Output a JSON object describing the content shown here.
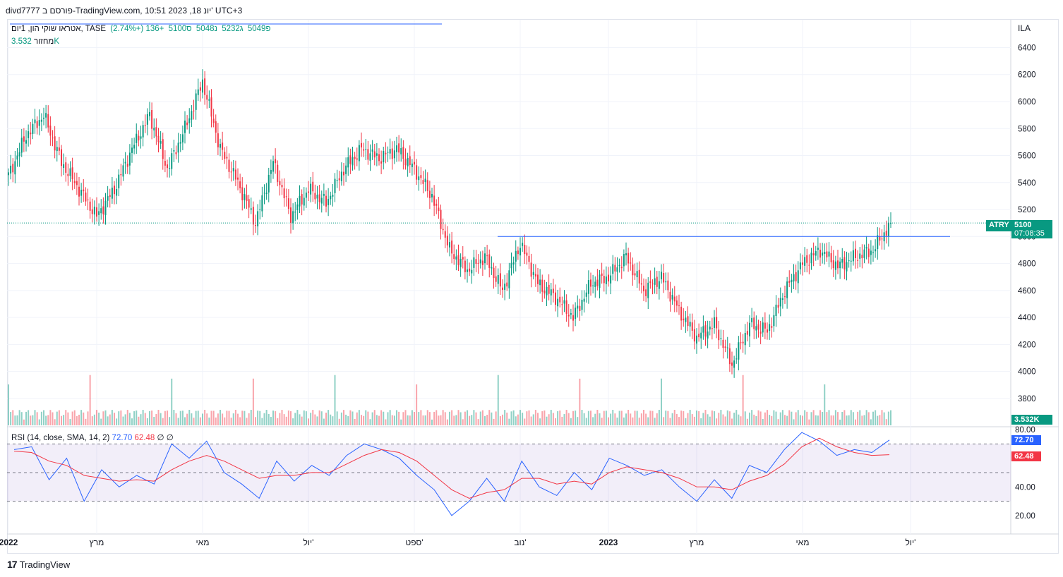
{
  "header": {
    "text": "divd7777 פורסם ב-TradingView.com, 10:51 2023 ,18 יונ' UTC+3"
  },
  "legend": {
    "symbol": "אטראו שוקי הון, 1יום, TASE",
    "open": "פ5049",
    "high": "ג5232",
    "low": "נ5048",
    "close": "ס5100",
    "change": "+136 (+2.74%)"
  },
  "volume_legend": {
    "label": "מחזור",
    "value": "3.532K"
  },
  "rsi_legend": {
    "label": "RSI (14, close, SMA, 14, 2)",
    "rsi": "72.70",
    "sma": "62.48",
    "e1": "∅",
    "e2": "∅"
  },
  "currency": "ILA",
  "price_tag": {
    "ticker": "ATRY",
    "price": "5100",
    "countdown": "07:08:35"
  },
  "volume_tag": "3.532K",
  "rsi_tags": {
    "rsi": "72.70",
    "sma": "62.48"
  },
  "footer": {
    "brand": "TradingView"
  },
  "colors": {
    "up": "#089981",
    "down": "#f23645",
    "rsi": "#2962ff",
    "rsi_sma": "#f23645",
    "line": "#2962ff",
    "band": "#7e57c2"
  },
  "chart_data": [
    {
      "type": "candlestick",
      "symbol": "ATRY",
      "xlabels": [
        "2022",
        "מרץ",
        "מאי",
        "יול'",
        "ספט'",
        "נוב'",
        "2023",
        "מרץ",
        "מאי",
        "יול'"
      ],
      "y_ticks": [
        3800,
        4000,
        4200,
        4400,
        4600,
        4800,
        5000,
        5200,
        5400,
        5600,
        5800,
        6000,
        6200,
        6400
      ],
      "ylim": [
        3700,
        6460
      ],
      "last_price": 5100,
      "horizontal_line": 5000,
      "swing_points": [
        {
          "label": "2022",
          "close": 5450
        },
        {
          "label": "",
          "close": 5750
        },
        {
          "label": "",
          "close": 5900
        },
        {
          "label": "",
          "close": 5550
        },
        {
          "label": "",
          "close": 5350
        },
        {
          "label": "מרץ",
          "close": 5150
        },
        {
          "label": "",
          "close": 5350
        },
        {
          "label": "",
          "close": 5650
        },
        {
          "label": "",
          "close": 5900
        },
        {
          "label": "",
          "close": 5500
        },
        {
          "label": "",
          "close": 5800
        },
        {
          "label": "מאי",
          "close": 6150
        },
        {
          "label": "",
          "close": 5650
        },
        {
          "label": "",
          "close": 5400
        },
        {
          "label": "",
          "close": 5100
        },
        {
          "label": "",
          "close": 5550
        },
        {
          "label": "",
          "close": 5150
        },
        {
          "label": "יול'",
          "close": 5350
        },
        {
          "label": "",
          "close": 5250
        },
        {
          "label": "",
          "close": 5500
        },
        {
          "label": "",
          "close": 5650
        },
        {
          "label": "",
          "close": 5580
        },
        {
          "label": "",
          "close": 5650
        },
        {
          "label": "ספט'",
          "close": 5500
        },
        {
          "label": "",
          "close": 5300
        },
        {
          "label": "",
          "close": 4900
        },
        {
          "label": "",
          "close": 4750
        },
        {
          "label": "",
          "close": 4850
        },
        {
          "label": "",
          "close": 4600
        },
        {
          "label": "נוב'",
          "close": 4950
        },
        {
          "label": "",
          "close": 4650
        },
        {
          "label": "",
          "close": 4550
        },
        {
          "label": "",
          "close": 4400
        },
        {
          "label": "",
          "close": 4650
        },
        {
          "label": "2023",
          "close": 4700
        },
        {
          "label": "",
          "close": 4850
        },
        {
          "label": "",
          "close": 4600
        },
        {
          "label": "",
          "close": 4700
        },
        {
          "label": "",
          "close": 4450
        },
        {
          "label": "מרץ",
          "close": 4250
        },
        {
          "label": "",
          "close": 4350
        },
        {
          "label": "",
          "close": 4050
        },
        {
          "label": "",
          "close": 4350
        },
        {
          "label": "",
          "close": 4300
        },
        {
          "label": "",
          "close": 4600
        },
        {
          "label": "מאי",
          "close": 4800
        },
        {
          "label": "",
          "close": 4900
        },
        {
          "label": "",
          "close": 4780
        },
        {
          "label": "",
          "close": 4850
        },
        {
          "label": "",
          "close": 4900
        },
        {
          "label": "",
          "close": 5100
        }
      ]
    },
    {
      "type": "line",
      "name": "RSI (14, close, SMA, 14, 2)",
      "y_ticks": [
        20,
        40,
        60,
        80
      ],
      "ylim": [
        16,
        80
      ],
      "band": [
        30,
        70
      ],
      "midline": 50,
      "series": [
        {
          "name": "RSI",
          "values": [
            66,
            68,
            45,
            60,
            30,
            52,
            40,
            48,
            42,
            70,
            60,
            72,
            50,
            42,
            32,
            58,
            44,
            55,
            48,
            62,
            70,
            66,
            60,
            48,
            38,
            20,
            30,
            46,
            30,
            58,
            40,
            34,
            50,
            38,
            60,
            55,
            48,
            52,
            40,
            30,
            45,
            32,
            55,
            50,
            66,
            78,
            72,
            62,
            66,
            64,
            72.7
          ]
        },
        {
          "name": "SMA",
          "values": [
            65,
            64,
            58,
            55,
            48,
            46,
            44,
            45,
            44,
            52,
            58,
            62,
            58,
            52,
            46,
            48,
            48,
            50,
            50,
            56,
            62,
            66,
            64,
            58,
            48,
            38,
            32,
            36,
            38,
            46,
            46,
            42,
            44,
            42,
            50,
            54,
            52,
            50,
            46,
            40,
            40,
            38,
            44,
            48,
            56,
            68,
            74,
            68,
            64,
            62,
            62.48
          ]
        }
      ]
    }
  ]
}
